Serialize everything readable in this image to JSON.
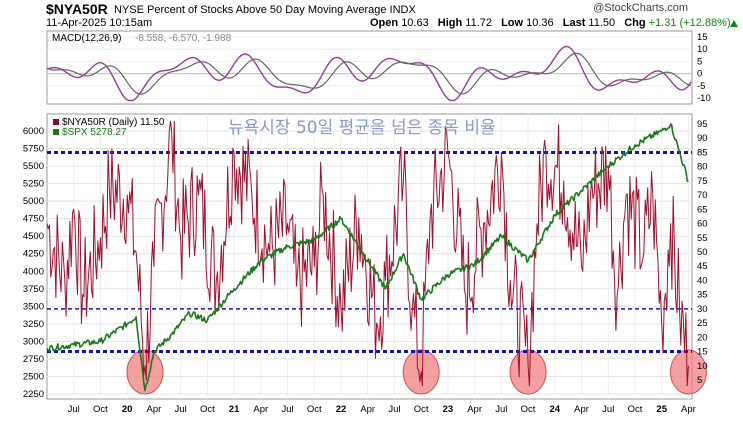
{
  "header": {
    "symbol": "$NYA50R",
    "description": "NYSE Percent of Stocks Above 50 Day Moving Average INDX",
    "date": "11-Apr-2025 10:15am",
    "open_label": "Open",
    "open": "10.63",
    "high_label": "High",
    "high": "11.72",
    "low_label": "Low",
    "low": "10.36",
    "last_label": "Last",
    "last": "11.50",
    "chg_label": "Chg",
    "chg": "+1.31 (+12.88%)",
    "brand": "@StockCharts.com"
  },
  "macd_panel": {
    "label": "MACD(12,26,9)",
    "values": "-8.558, -6.570, -1.988",
    "right_ticks": [
      "15",
      "10",
      "5",
      "0",
      "-5",
      "-10"
    ]
  },
  "legend": [
    {
      "label": "$NYA50R (Daily) 11.50",
      "color": "#8b0a2a"
    },
    {
      "label": "$SPX 5278.27",
      "color": "#1a7a1a"
    }
  ],
  "annotation": "뉴욕시장 50일 평균을 넘은 종목 비율",
  "colors": {
    "nya": "#a0102e",
    "spx": "#1a7a1a",
    "ref_line": "#1010c8",
    "circle": "#f08080"
  },
  "chart_data": {
    "type": "line",
    "left_axis_ticks": [
      6000,
      5750,
      5500,
      5250,
      5000,
      4750,
      4500,
      4250,
      4000,
      3750,
      3500,
      3250,
      3000,
      2750,
      2500,
      2250
    ],
    "right_axis_ticks": [
      95,
      90,
      85,
      80,
      75,
      70,
      65,
      60,
      55,
      50,
      45,
      40,
      35,
      30,
      25,
      20,
      15,
      10,
      5
    ],
    "x_tick_labels": [
      "Jul",
      "Oct",
      "20",
      "Apr",
      "Jul",
      "Oct",
      "21",
      "Apr",
      "Jul",
      "Oct",
      "22",
      "Apr",
      "Jul",
      "Oct",
      "23",
      "Apr",
      "Jul",
      "Oct",
      "24",
      "Apr",
      "Jul",
      "Oct",
      "25",
      "Apr"
    ],
    "reference_lines": [
      85,
      30,
      15
    ],
    "highlight_circles": [
      "Mar 2020",
      "Oct 2022",
      "Oct 2023",
      "Apr 2025"
    ],
    "series": [
      {
        "name": "$SPX",
        "axis": "left",
        "x": [
          "Apr 2019",
          "Jul 2019",
          "Oct 2019",
          "Jan 2020",
          "Feb 2020",
          "Mar 2020",
          "Apr 2020",
          "Jun 2020",
          "Aug 2020",
          "Oct 2020",
          "Jan 2021",
          "Apr 2021",
          "Jul 2021",
          "Oct 2021",
          "Jan 2022",
          "Mar 2022",
          "Jun 2022",
          "Aug 2022",
          "Oct 2022",
          "Jan 2023",
          "Apr 2023",
          "Jul 2023",
          "Oct 2023",
          "Jan 2024",
          "Apr 2024",
          "Jul 2024",
          "Oct 2024",
          "Jan 2025",
          "Feb 2025",
          "Mar 2025",
          "Apr 2025"
        ],
        "values": [
          2900,
          2950,
          3000,
          3250,
          3350,
          2300,
          2850,
          3100,
          3400,
          3300,
          3750,
          4150,
          4350,
          4450,
          4750,
          4350,
          3750,
          4250,
          3600,
          3950,
          4100,
          4500,
          4150,
          4800,
          5150,
          5500,
          5800,
          6000,
          6100,
          5700,
          5280
        ]
      },
      {
        "name": "$NYA50R",
        "axis": "right",
        "x": [
          "Apr 2019",
          "Jun 2019",
          "Jul 2019",
          "Aug 2019",
          "Oct 2019",
          "Nov 2019",
          "Jan 2020",
          "Feb 2020",
          "Mar 2020",
          "Apr 2020",
          "Jun 2020",
          "Jul 2020",
          "Sep 2020",
          "Nov 2020",
          "Jan 2021",
          "Mar 2021",
          "May 2021",
          "Jul 2021",
          "Aug 2021",
          "Oct 2021",
          "Nov 2021",
          "Jan 2022",
          "Mar 2022",
          "May 2022",
          "Jun 2022",
          "Aug 2022",
          "Sep 2022",
          "Oct 2022",
          "Nov 2022",
          "Jan 2023",
          "Mar 2023",
          "May 2023",
          "Jul 2023",
          "Aug 2023",
          "Oct 2023",
          "Nov 2023",
          "Dec 2023",
          "Feb 2024",
          "Apr 2024",
          "May 2024",
          "Jul 2024",
          "Aug 2024",
          "Sep 2024",
          "Nov 2024",
          "Dec 2024",
          "Jan 2025",
          "Feb 2025",
          "Mar 2025",
          "Apr 2025"
        ],
        "values": [
          60,
          40,
          65,
          35,
          55,
          72,
          70,
          50,
          10,
          45,
          92,
          55,
          70,
          40,
          85,
          70,
          50,
          60,
          38,
          45,
          70,
          30,
          62,
          25,
          40,
          75,
          30,
          8,
          62,
          85,
          35,
          60,
          85,
          40,
          10,
          60,
          85,
          75,
          45,
          70,
          80,
          35,
          70,
          50,
          70,
          25,
          60,
          30,
          10
        ]
      }
    ]
  }
}
